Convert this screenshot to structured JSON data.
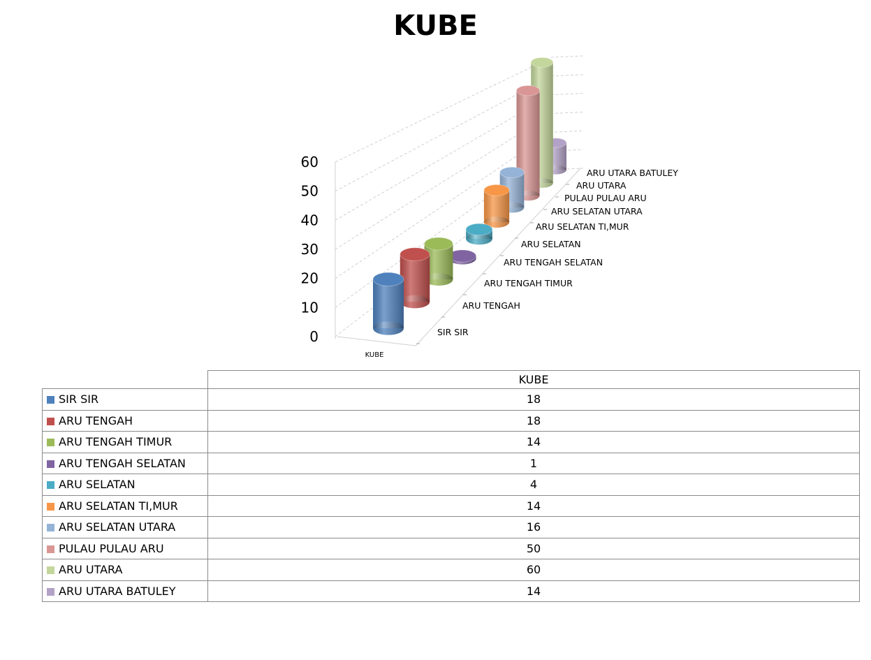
{
  "chart_data": {
    "type": "bar",
    "style": "3d-cylinder",
    "title": "KUBE",
    "xlabel": "",
    "ylabel": "",
    "category_axis_label": "KUBE",
    "ylim": [
      0,
      60
    ],
    "yticks": [
      0,
      10,
      20,
      30,
      40,
      50,
      60
    ],
    "grid": true,
    "legend": "data-table-below",
    "series": [
      {
        "name": "SIR SIR",
        "value": 18,
        "color": "#4F81BD"
      },
      {
        "name": "ARU TENGAH",
        "value": 18,
        "color": "#C0504D"
      },
      {
        "name": "ARU TENGAH TIMUR",
        "value": 14,
        "color": "#9BBB59"
      },
      {
        "name": "ARU TENGAH SELATAN",
        "value": 1,
        "color": "#8064A2"
      },
      {
        "name": "ARU SELATAN",
        "value": 4,
        "color": "#4BACC6"
      },
      {
        "name": "ARU SELATAN TI,MUR",
        "value": 14,
        "color": "#F79646"
      },
      {
        "name": "ARU SELATAN UTARA",
        "value": 16,
        "color": "#95B3D7"
      },
      {
        "name": "PULAU PULAU ARU",
        "value": 50,
        "color": "#D99694"
      },
      {
        "name": "ARU UTARA",
        "value": 60,
        "color": "#C3D69B"
      },
      {
        "name": "ARU UTARA BATULEY",
        "value": 14,
        "color": "#B3A2C7"
      }
    ],
    "table_header": "KUBE"
  }
}
